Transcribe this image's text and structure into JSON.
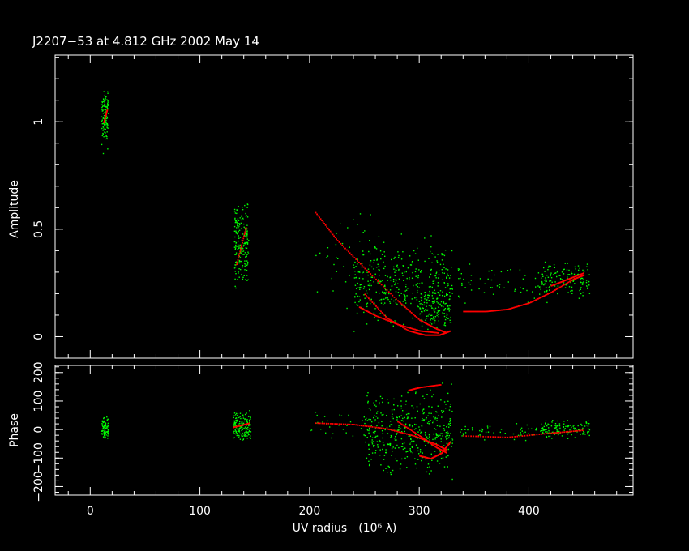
{
  "chart_data": [
    {
      "type": "scatter",
      "title": "J2207−53 at 4.812 GHz 2002 May 14",
      "ylabel": "Amplitude",
      "xlabel": "",
      "xlim": [
        -32,
        495
      ],
      "ylim": [
        -0.1,
        1.31
      ],
      "x_ticks": [
        0,
        100,
        200,
        300,
        400
      ],
      "y_ticks": [
        0,
        0.5,
        1
      ],
      "y_tick_labels": [
        "0",
        "0.5",
        "1"
      ],
      "colors": {
        "data": "#00ff00",
        "model": "#ff0000"
      },
      "series": [
        {
          "color": "#00ff00",
          "clusters": [
            {
              "x": [
                10,
                16
              ],
              "y": [
                0.83,
                1.2
              ],
              "n": 110
            },
            {
              "x": [
                131,
                144
              ],
              "y": [
                0.16,
                0.69
              ],
              "n": 200
            },
            {
              "x": [
                205,
                260
              ],
              "y": [
                0.08,
                0.67
              ],
              "n": 40
            },
            {
              "x": [
                240,
                330
              ],
              "y": [
                0.0,
                0.5
              ],
              "n": 380
            },
            {
              "x": [
                300,
                330
              ],
              "y": [
                0.0,
                0.25
              ],
              "n": 120
            },
            {
              "x": [
                335,
                420
              ],
              "y": [
                0.12,
                0.38
              ],
              "n": 70
            },
            {
              "x": [
                410,
                455
              ],
              "y": [
                0.16,
                0.38
              ],
              "n": 140
            }
          ]
        },
        {
          "color": "#ff0000",
          "curves": [
            {
              "x": [
                12,
                15
              ],
              "y": [
                1.0,
                1.06
              ]
            },
            {
              "x": [
                133,
                142
              ],
              "y": [
                0.34,
                0.52
              ]
            },
            {
              "x": [
                205,
                225,
                250,
                280,
                300,
                315,
                325
              ],
              "y": [
                0.58,
                0.45,
                0.32,
                0.17,
                0.08,
                0.04,
                0.02
              ]
            },
            {
              "x": [
                250,
                270,
                290,
                305,
                318,
                328
              ],
              "y": [
                0.2,
                0.09,
                0.03,
                0.01,
                0.01,
                0.03
              ]
            },
            {
              "x": [
                245,
                260,
                280,
                300,
                318
              ],
              "y": [
                0.14,
                0.1,
                0.06,
                0.03,
                0.02
              ]
            },
            {
              "x": [
                340,
                360,
                380,
                400,
                420,
                440,
                450
              ],
              "y": [
                0.12,
                0.12,
                0.13,
                0.16,
                0.21,
                0.27,
                0.29
              ]
            },
            {
              "x": [
                420,
                435,
                450
              ],
              "y": [
                0.24,
                0.27,
                0.3
              ]
            }
          ]
        }
      ]
    },
    {
      "type": "scatter",
      "title": "",
      "ylabel": "Phase",
      "xlabel": "UV radius",
      "xlabel_unit": "10⁶ λ",
      "xlim": [
        -32,
        495
      ],
      "ylim": [
        -230,
        225
      ],
      "x_ticks": [
        0,
        100,
        200,
        300,
        400
      ],
      "x_tick_labels": [
        "0",
        "100",
        "200",
        "300",
        "400"
      ],
      "y_ticks": [
        -200,
        -100,
        0,
        100,
        200
      ],
      "y_tick_labels": [
        "−200",
        "−100",
        "0",
        "100",
        "200"
      ],
      "colors": {
        "data": "#00ff00",
        "model": "#ff0000"
      },
      "series": [
        {
          "color": "#00ff00",
          "clusters": [
            {
              "x": [
                10,
                16
              ],
              "y": [
                -60,
                60
              ],
              "n": 80
            },
            {
              "x": [
                130,
                146
              ],
              "y": [
                -60,
                80
              ],
              "n": 160
            },
            {
              "x": [
                250,
                330
              ],
              "y": [
                -210,
                200
              ],
              "n": 420
            },
            {
              "x": [
                200,
                250
              ],
              "y": [
                -60,
                100
              ],
              "n": 30
            },
            {
              "x": [
                335,
                420
              ],
              "y": [
                -40,
                30
              ],
              "n": 60
            },
            {
              "x": [
                410,
                455
              ],
              "y": [
                -40,
                50
              ],
              "n": 120
            }
          ]
        },
        {
          "color": "#ff0000",
          "curves": [
            {
              "x": [
                130,
                145
              ],
              "y": [
                10,
                25
              ]
            },
            {
              "x": [
                205,
                240,
                270,
                295,
                315,
                325
              ],
              "y": [
                25,
                20,
                5,
                -20,
                -50,
                -70
              ]
            },
            {
              "x": [
                300,
                310,
                320,
                328
              ],
              "y": [
                -90,
                -100,
                -80,
                -40
              ]
            },
            {
              "x": [
                280,
                300,
                315,
                325
              ],
              "y": [
                30,
                -20,
                -60,
                -80
              ]
            },
            {
              "x": [
                290,
                300,
                320
              ],
              "y": [
                140,
                150,
                160
              ]
            },
            {
              "x": [
                340,
                380,
                420,
                450
              ],
              "y": [
                -20,
                -25,
                -10,
                0
              ]
            }
          ]
        }
      ]
    }
  ]
}
